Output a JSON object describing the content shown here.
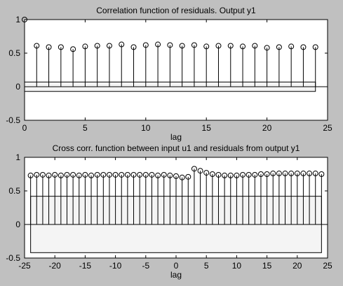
{
  "window": {
    "background": "#c0c0c0"
  },
  "chart_data": [
    {
      "type": "stem",
      "title": "Correlation function of residuals. Output y1",
      "xlabel": "lag",
      "ylabel": "",
      "xlim": [
        0,
        25
      ],
      "ylim": [
        -0.5,
        1
      ],
      "xticks": [
        0,
        5,
        10,
        15,
        20,
        25
      ],
      "yticks": [
        -0.5,
        0,
        0.5,
        1
      ],
      "x": [
        0,
        1,
        2,
        3,
        4,
        5,
        6,
        7,
        8,
        9,
        10,
        11,
        12,
        13,
        14,
        15,
        16,
        17,
        18,
        19,
        20,
        21,
        22,
        23,
        24
      ],
      "values": [
        1.0,
        0.61,
        0.59,
        0.59,
        0.56,
        0.6,
        0.61,
        0.61,
        0.63,
        0.59,
        0.62,
        0.63,
        0.62,
        0.61,
        0.62,
        0.6,
        0.61,
        0.61,
        0.6,
        0.61,
        0.58,
        0.59,
        0.6,
        0.59,
        0.59
      ],
      "confidence_band": [
        -0.07,
        0.07
      ],
      "plot_background": "#ffffff"
    },
    {
      "type": "stem",
      "title": "Cross corr. function between input u1 and residuals from output y1",
      "xlabel": "lag",
      "ylabel": "",
      "xlim": [
        -25,
        25
      ],
      "ylim": [
        -0.5,
        1
      ],
      "xticks": [
        -25,
        -20,
        -15,
        -10,
        -5,
        0,
        5,
        10,
        15,
        20,
        25
      ],
      "yticks": [
        -0.5,
        0,
        0.5,
        1
      ],
      "x": [
        -24,
        -23,
        -22,
        -21,
        -20,
        -19,
        -18,
        -17,
        -16,
        -15,
        -14,
        -13,
        -12,
        -11,
        -10,
        -9,
        -8,
        -7,
        -6,
        -5,
        -4,
        -3,
        -2,
        -1,
        0,
        1,
        2,
        3,
        4,
        5,
        6,
        7,
        8,
        9,
        10,
        11,
        12,
        13,
        14,
        15,
        16,
        17,
        18,
        19,
        20,
        21,
        22,
        23,
        24
      ],
      "values": [
        0.73,
        0.74,
        0.74,
        0.73,
        0.74,
        0.73,
        0.74,
        0.74,
        0.73,
        0.74,
        0.73,
        0.74,
        0.74,
        0.74,
        0.74,
        0.74,
        0.74,
        0.74,
        0.74,
        0.74,
        0.74,
        0.73,
        0.74,
        0.73,
        0.72,
        0.7,
        0.71,
        0.83,
        0.8,
        0.77,
        0.75,
        0.74,
        0.73,
        0.73,
        0.73,
        0.74,
        0.74,
        0.74,
        0.75,
        0.75,
        0.76,
        0.76,
        0.76,
        0.76,
        0.76,
        0.76,
        0.76,
        0.76,
        0.75
      ],
      "confidence_band": [
        -0.42,
        0.42
      ],
      "plot_background": "#ffffff"
    }
  ]
}
